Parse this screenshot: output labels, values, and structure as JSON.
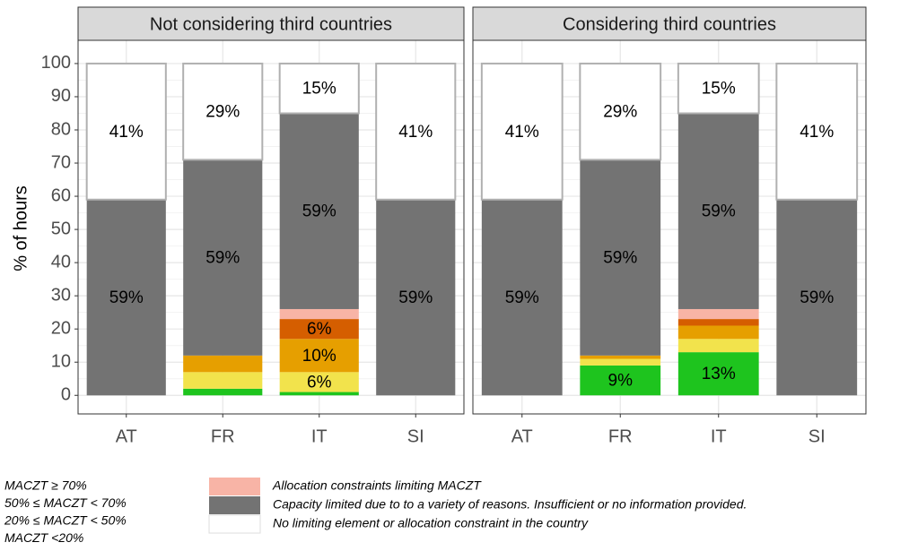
{
  "chart_data": [
    {
      "type": "bar",
      "title": "Not considering third countries",
      "ylabel": "% of hours",
      "categories": [
        "AT",
        "FR",
        "IT",
        "SI"
      ],
      "ylim": [
        -5.6,
        107
      ],
      "yticks": [
        0,
        10,
        20,
        30,
        40,
        50,
        60,
        70,
        80,
        90,
        100
      ],
      "grid": true,
      "stacked": true,
      "series": [
        {
          "name": "MACZT ≥ 70%",
          "color": "#1ec41e",
          "values": [
            0,
            2,
            1,
            0
          ],
          "value_labels": [
            null,
            null,
            null,
            null
          ]
        },
        {
          "name": "50% ≤ MACZT < 70%",
          "color": "#f2e34c",
          "values": [
            0,
            5,
            6,
            0
          ],
          "value_labels": [
            null,
            null,
            "6%",
            null
          ]
        },
        {
          "name": "20% ≤ MACZT < 50%",
          "color": "#e69f00",
          "values": [
            0,
            5,
            10,
            0
          ],
          "value_labels": [
            null,
            null,
            "10%",
            null
          ]
        },
        {
          "name": "MACZT <20%",
          "color": "#d55e00",
          "values": [
            0,
            0,
            6,
            0
          ],
          "value_labels": [
            null,
            null,
            "6%",
            null
          ]
        },
        {
          "name": "Allocation constraints limiting MACZT",
          "color": "#f8b4a6",
          "values": [
            0,
            0,
            3,
            0
          ],
          "value_labels": [
            null,
            null,
            null,
            null
          ]
        },
        {
          "name": "Capacity limited due to to a variety of reasons. Insufficient or no information provided.",
          "color": "#737373",
          "values": [
            59,
            59,
            59,
            59
          ],
          "value_labels": [
            "59%",
            "59%",
            "59%",
            "59%"
          ]
        },
        {
          "name": "No limiting element or allocation constraint in the country",
          "color": "#ffffff",
          "values": [
            41,
            29,
            15,
            41
          ],
          "value_labels": [
            "41%",
            "29%",
            "15%",
            "41%"
          ]
        }
      ]
    },
    {
      "type": "bar",
      "title": "Considering third countries",
      "categories": [
        "AT",
        "FR",
        "IT",
        "SI"
      ],
      "ylim": [
        -5.6,
        107
      ],
      "yticks": [
        0,
        10,
        20,
        30,
        40,
        50,
        60,
        70,
        80,
        90,
        100
      ],
      "grid": true,
      "stacked": true,
      "series": [
        {
          "name": "MACZT ≥ 70%",
          "color": "#1ec41e",
          "values": [
            0,
            9,
            13,
            0
          ],
          "value_labels": [
            null,
            "9%",
            "13%",
            null
          ]
        },
        {
          "name": "50% ≤ MACZT < 70%",
          "color": "#f2e34c",
          "values": [
            0,
            2,
            4,
            0
          ],
          "value_labels": [
            null,
            null,
            null,
            null
          ]
        },
        {
          "name": "20% ≤ MACZT < 50%",
          "color": "#e69f00",
          "values": [
            0,
            1,
            4,
            0
          ],
          "value_labels": [
            null,
            null,
            null,
            null
          ]
        },
        {
          "name": "MACZT <20%",
          "color": "#d55e00",
          "values": [
            0,
            0,
            2,
            0
          ],
          "value_labels": [
            null,
            null,
            null,
            null
          ]
        },
        {
          "name": "Allocation constraints limiting MACZT",
          "color": "#f8b4a6",
          "values": [
            0,
            0,
            3,
            0
          ],
          "value_labels": [
            null,
            null,
            null,
            null
          ]
        },
        {
          "name": "Capacity limited due to to a variety of reasons. Insufficient or no information provided.",
          "color": "#737373",
          "values": [
            59,
            59,
            59,
            59
          ],
          "value_labels": [
            "59%",
            "59%",
            "59%",
            "59%"
          ]
        },
        {
          "name": "No limiting element or allocation constraint in the country",
          "color": "#ffffff",
          "values": [
            41,
            29,
            15,
            41
          ],
          "value_labels": [
            "41%",
            "29%",
            "15%",
            "41%"
          ]
        }
      ]
    }
  ]
}
